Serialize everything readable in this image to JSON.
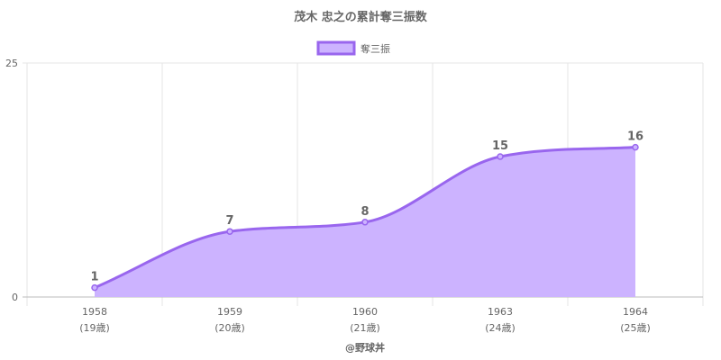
{
  "chart_data": {
    "type": "area",
    "title": "茂木 忠之の累計奪三振数",
    "categories": [
      "1958",
      "1959",
      "1960",
      "1963",
      "1964"
    ],
    "category_sublabels": [
      "(19歳)",
      "(20歳)",
      "(21歳)",
      "(24歳)",
      "(25歳)"
    ],
    "series": [
      {
        "name": "奪三振",
        "values": [
          1,
          7,
          8,
          15,
          16
        ]
      }
    ],
    "data_labels": [
      "1",
      "7",
      "8",
      "15",
      "16"
    ],
    "xlabel": "@野球丼",
    "ylabel": "",
    "ylim": [
      0,
      25
    ],
    "yticks": [
      "0",
      "25"
    ],
    "grid": true,
    "legend": "top-center",
    "colors": {
      "line": "#9966ee",
      "fill": "#ccb3ff",
      "grid": "#e6e6e6",
      "text": "#666666"
    }
  }
}
